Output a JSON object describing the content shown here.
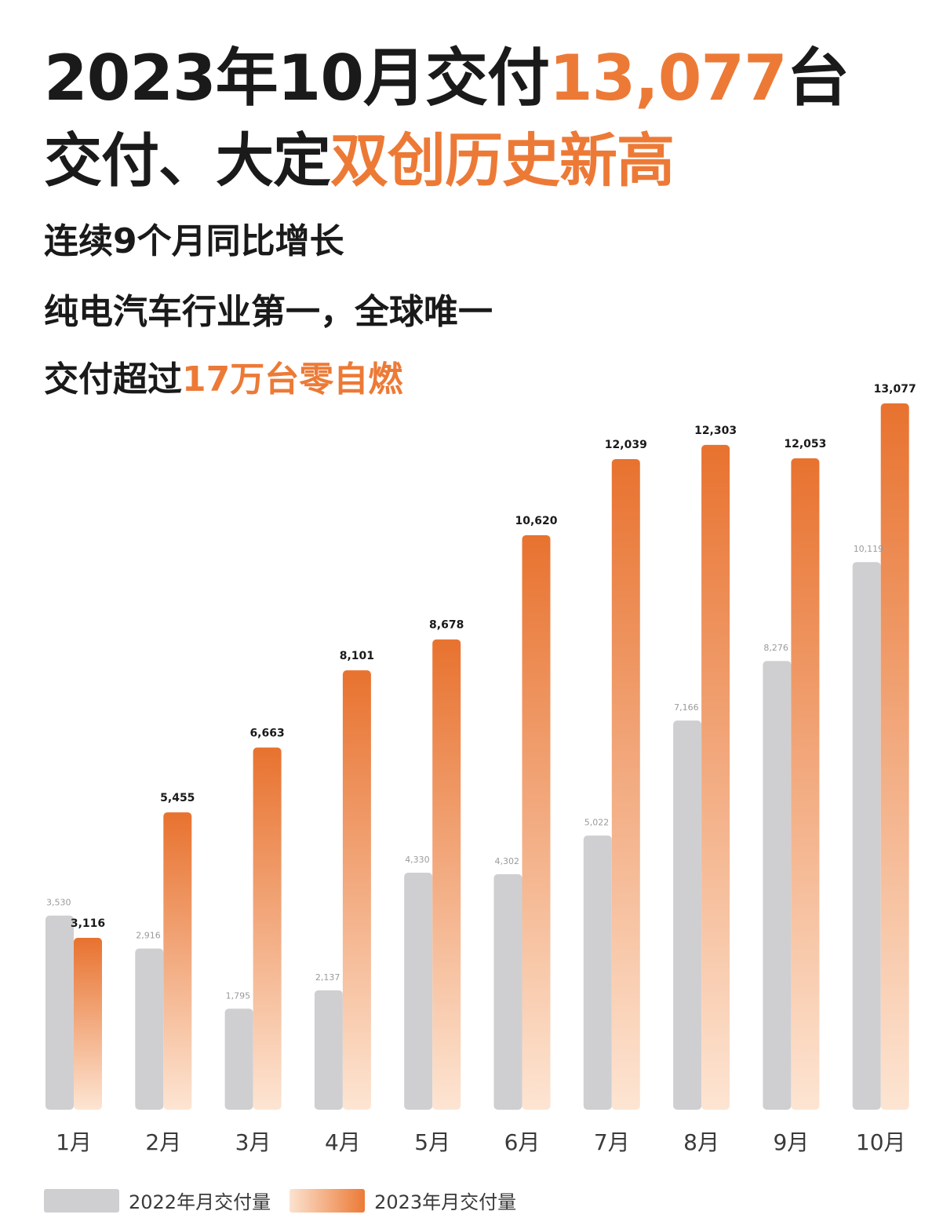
{
  "title": {
    "line1_prefix": "2023年10月交付",
    "line1_accent": "13,077",
    "line1_suffix": "台",
    "line2_prefix": "交付、大定",
    "line2_accent": "双创历史新高"
  },
  "subtitle": {
    "line1": "连续9个月同比增长",
    "line2": "纯电汽车行业第一，全球唯一",
    "line3_prefix": "交付超过",
    "line3_accent": "17万台零自燃"
  },
  "colors": {
    "accent": "#ec7a36",
    "series_2022": "#cfcfd2",
    "series_2023_top": "#e8722f",
    "series_2023_bottom": "#fde5d3"
  },
  "chart_data": {
    "type": "bar",
    "categories": [
      "1月",
      "2月",
      "3月",
      "4月",
      "5月",
      "6月",
      "7月",
      "8月",
      "9月",
      "10月"
    ],
    "series": [
      {
        "name": "2022年月交付量",
        "values": [
          3530,
          2916,
          1795,
          2137,
          4330,
          4302,
          5022,
          7166,
          8276,
          10119
        ]
      },
      {
        "name": "2023年月交付量",
        "values": [
          3116,
          5455,
          6663,
          8101,
          8678,
          10620,
          12039,
          12303,
          12053,
          13077
        ]
      }
    ],
    "value_labels": {
      "2022": [
        "3,530",
        "2,916",
        "1,795",
        "2,137",
        "4,330",
        "4,302",
        "5,022",
        "7,166",
        "8,276",
        "10,119"
      ],
      "2023": [
        "3,116",
        "5,455",
        "6,663",
        "8,101",
        "8,678",
        "10,620",
        "12,039",
        "12,303",
        "12,053",
        "13,077"
      ]
    },
    "ylim": [
      0,
      13077
    ],
    "grid": false,
    "legend_position": "bottom-left"
  },
  "legend": {
    "label_2022": "2022年月交付量",
    "label_2023": "2023年月交付量"
  }
}
